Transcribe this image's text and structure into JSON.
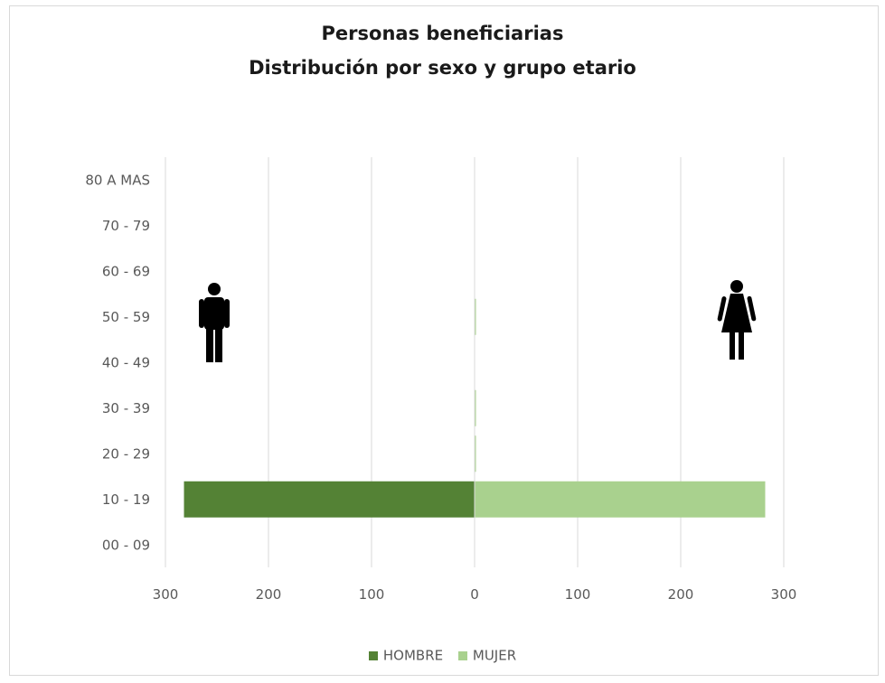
{
  "chart_data": {
    "type": "bar",
    "orientation": "horizontal-population-pyramid",
    "title": "Personas beneficiarias",
    "subtitle": "Distribución por sexo y grupo etario",
    "categories": [
      "00 - 09",
      "10 - 19",
      "20 - 29",
      "30 - 39",
      "40 - 49",
      "50 - 59",
      "60 - 69",
      "70 - 79",
      "80 A MAS"
    ],
    "series": [
      {
        "name": "HOMBRE",
        "color": "#548235",
        "side": "left",
        "values": [
          0,
          282,
          0,
          0,
          0,
          0,
          0,
          0,
          0
        ]
      },
      {
        "name": "MUJER",
        "color": "#a9d18e",
        "side": "right",
        "values": [
          0,
          282,
          1,
          1,
          0,
          1,
          0,
          0,
          0
        ]
      }
    ],
    "x_tick_labels": [
      "300",
      "200",
      "100",
      "0",
      "100",
      "200",
      "300"
    ],
    "xlim": [
      -300,
      300
    ],
    "grid": true,
    "legend_position": "bottom",
    "icons": {
      "left": "man-icon",
      "right": "woman-icon"
    }
  }
}
